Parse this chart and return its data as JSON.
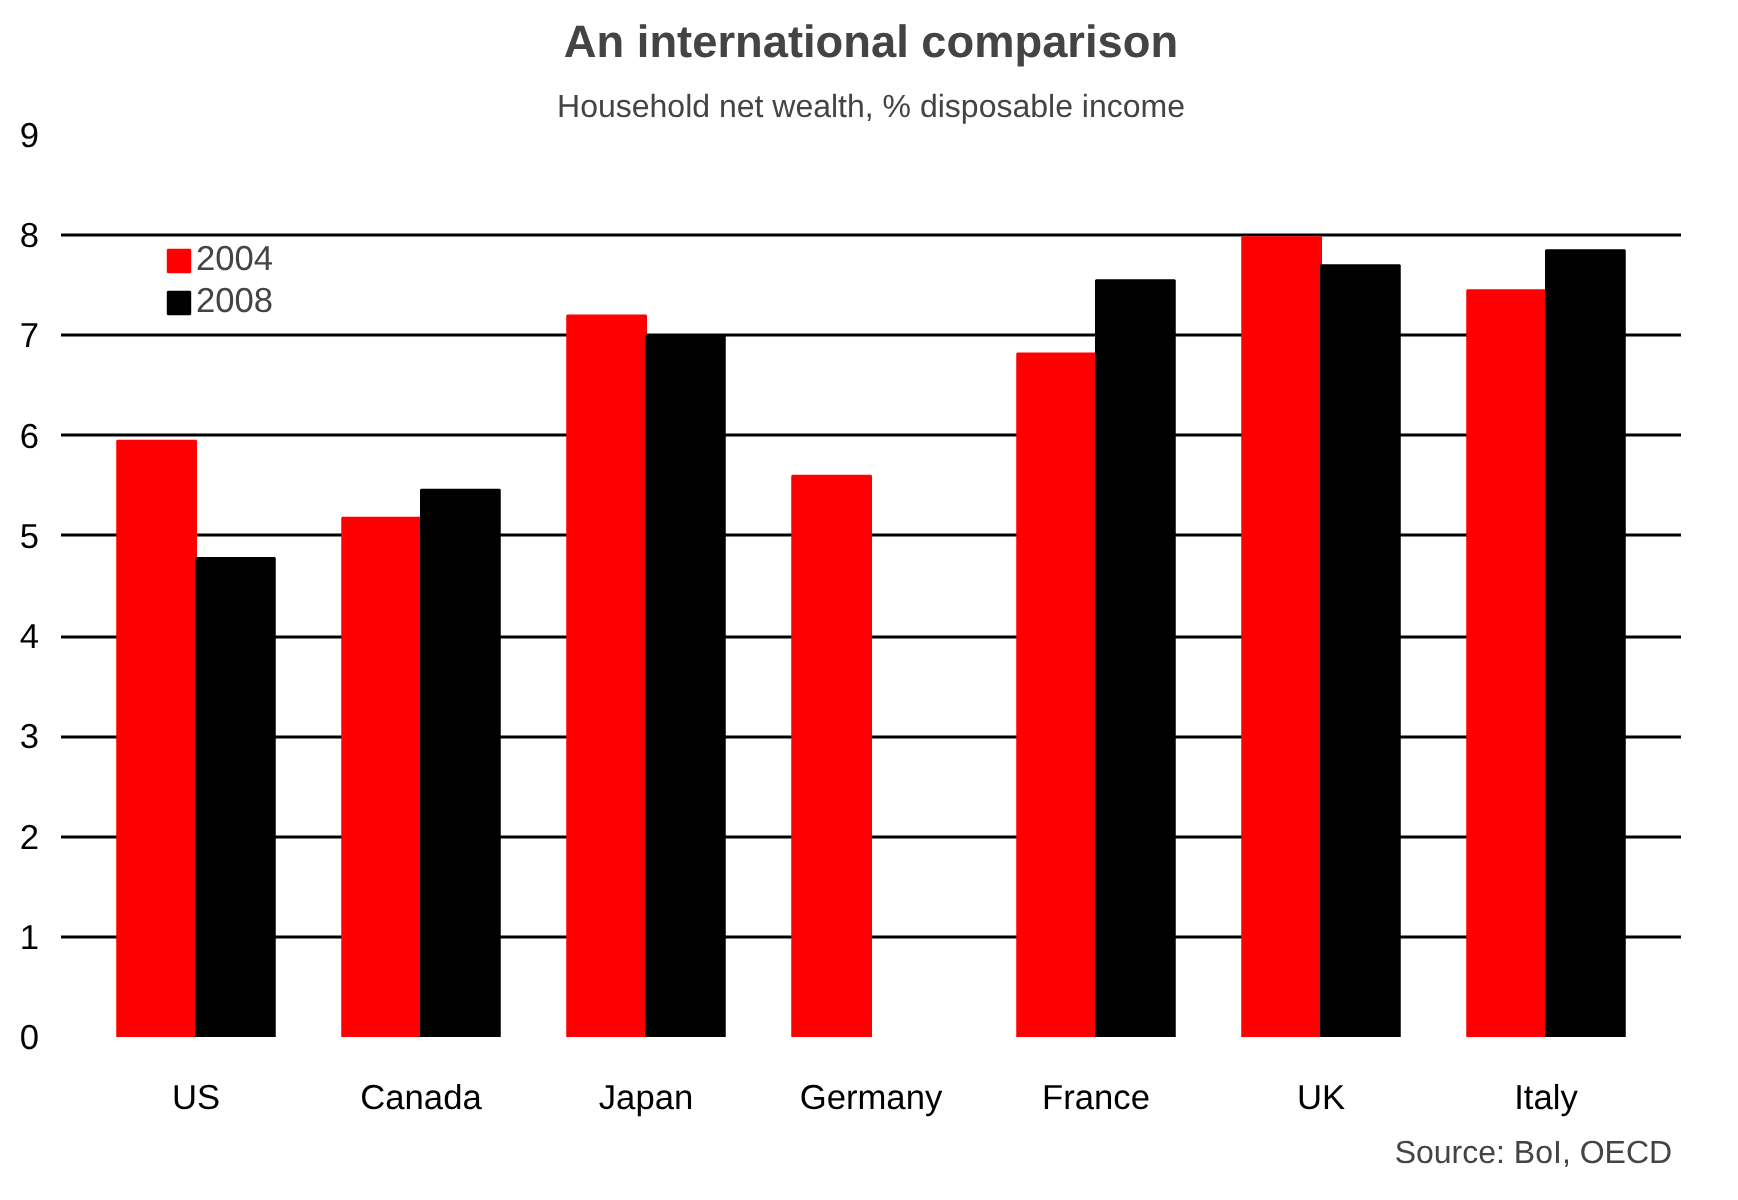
{
  "chart_data": {
    "type": "bar",
    "title": "An international comparison",
    "subtitle": "Household net wealth, % disposable income",
    "categories": [
      "US",
      "Canada",
      "Japan",
      "Germany",
      "France",
      "UK",
      "Italy"
    ],
    "series": [
      {
        "name": "2004",
        "color": "#ff0000",
        "values": [
          5.95,
          5.18,
          7.2,
          5.6,
          6.82,
          7.98,
          7.45
        ]
      },
      {
        "name": "2008",
        "color": "#000000",
        "values": [
          4.78,
          5.46,
          7.0,
          null,
          7.55,
          7.7,
          7.85
        ]
      }
    ],
    "ylim": [
      0,
      9
    ],
    "yticks": [
      0,
      1,
      2,
      3,
      4,
      5,
      6,
      7,
      8,
      9
    ],
    "grid": "y",
    "legend": "top left",
    "annotations": [
      "Source:  BoI, OECD"
    ]
  }
}
